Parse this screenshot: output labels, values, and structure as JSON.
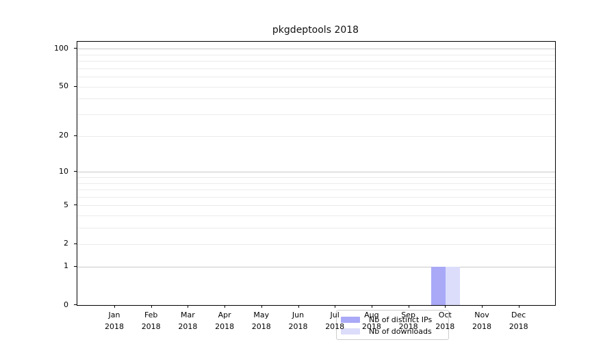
{
  "chart_data": {
    "type": "bar",
    "title": "pkgdeptools 2018",
    "categories": [
      "Jan 2018",
      "Feb 2018",
      "Mar 2018",
      "Apr 2018",
      "May 2018",
      "Jun 2018",
      "Jul 2018",
      "Aug 2018",
      "Sep 2018",
      "Oct 2018",
      "Nov 2018",
      "Dec 2018"
    ],
    "series": [
      {
        "name": "Nb of distinct IPs",
        "color": "#a9a9f7",
        "values": [
          0,
          0,
          0,
          0,
          0,
          0,
          0,
          0,
          0,
          1,
          0,
          0
        ]
      },
      {
        "name": "Nb of downloads",
        "color": "#dcdcfb",
        "values": [
          0,
          0,
          0,
          0,
          0,
          0,
          0,
          0,
          0,
          1,
          0,
          0
        ]
      }
    ],
    "xlabel": "",
    "ylabel": "",
    "yscale": "log1p",
    "ylim": [
      0,
      114
    ],
    "yticks": [
      0,
      1,
      2,
      5,
      10,
      20,
      50,
      100
    ],
    "minor_gridlines": [
      2,
      3,
      4,
      5,
      6,
      7,
      8,
      9,
      20,
      30,
      40,
      50,
      60,
      70,
      80,
      90
    ],
    "major_gridlines": [
      1,
      10,
      100
    ],
    "grid": true,
    "legend_position": "lower center",
    "colors": {
      "spine": "#000000",
      "grid_major": "#c8c8c8",
      "grid_minor": "#ebebeb",
      "background": "#ffffff",
      "legend_border": "#cccccc"
    }
  }
}
